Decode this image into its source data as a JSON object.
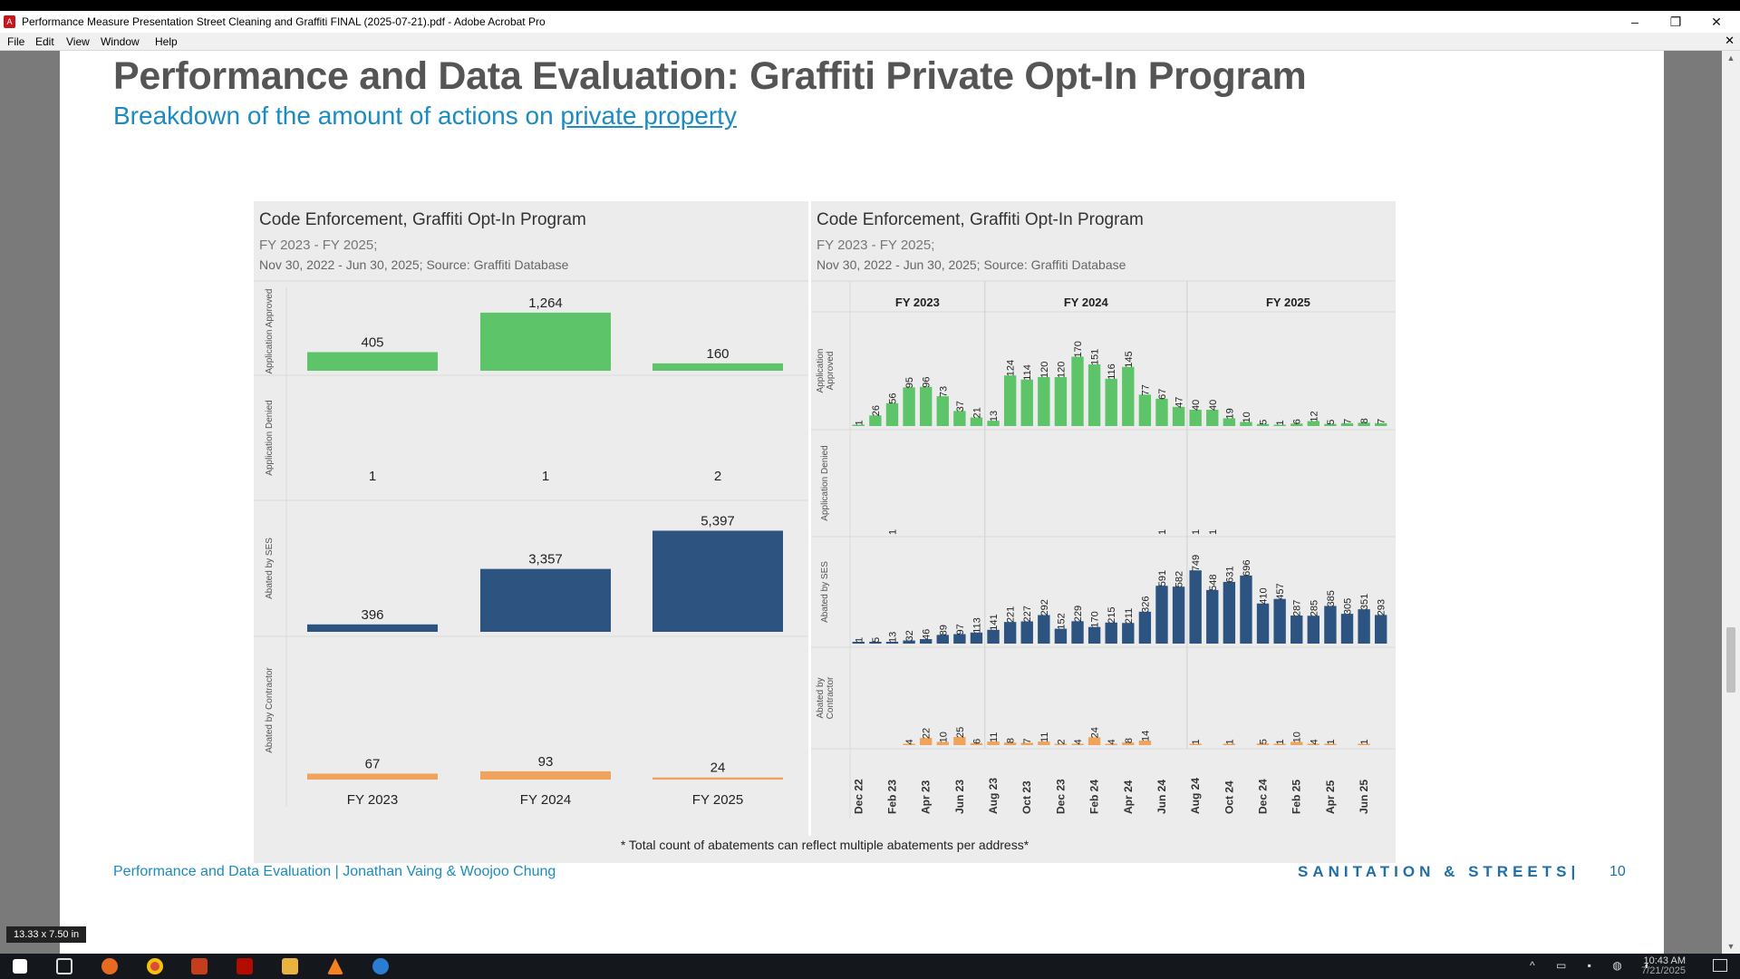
{
  "window": {
    "title": "Performance Measure Presentation Street Cleaning and Graffiti FINAL (2025-07-21).pdf - Adobe Acrobat Pro",
    "menu": [
      "File",
      "Edit",
      "View",
      "Window",
      "Help"
    ],
    "minimize": "–",
    "restore": "❐",
    "close": "✕"
  },
  "slide": {
    "title": "Performance and Data Evaluation: Graffiti Private Opt-In Program",
    "subtitle_prefix": "Breakdown of the amount of actions on ",
    "subtitle_link": "private property",
    "footnote": "* Total count of abatements can reflect multiple abatements per address*",
    "footer_left": "Performance and Data Evaluation | Jonathan Vaing & Woojoo Chung",
    "footer_right": "SANITATION & STREETS|",
    "page_number": "10"
  },
  "status": {
    "page_size": "13.33 x 7.50 in",
    "clock_time": "10:43 AM",
    "clock_date": "7/21/2025"
  },
  "colors": {
    "green": "#5ec46a",
    "navy": "#2d5480",
    "orange": "#f0a35a",
    "accent": "#1c8bbf"
  },
  "chart_data": [
    {
      "type": "bar",
      "title": "Code Enforcement, Graffiti Opt-In Program",
      "subtitle": "FY 2023 - FY 2025;",
      "source": "Nov 30, 2022 - Jun 30, 2025; Source: Graffiti Database",
      "categories": [
        "FY 2023",
        "FY 2024",
        "FY 2025"
      ],
      "series": [
        {
          "name": "Application Approved",
          "values": [
            405,
            1264,
            160
          ],
          "labels": [
            "405",
            "1,264",
            "160"
          ],
          "color": "#5ec46a"
        },
        {
          "name": "Application Denied",
          "values": [
            1,
            1,
            2
          ],
          "labels": [
            "1",
            "1",
            "2"
          ],
          "color": "#5ec46a"
        },
        {
          "name": "Abated by SES",
          "values": [
            396,
            3357,
            5397
          ],
          "labels": [
            "396",
            "3,357",
            "5,397"
          ],
          "color": "#2d5480"
        },
        {
          "name": "Abated by Contractor",
          "values": [
            67,
            93,
            24
          ],
          "labels": [
            "67",
            "93",
            "24"
          ],
          "color": "#f0a35a"
        }
      ]
    },
    {
      "type": "bar",
      "title": "Code Enforcement, Graffiti Opt-In Program",
      "subtitle": "FY 2023 - FY 2025;",
      "source": "Nov 30, 2022 - Jun 30, 2025; Source: Graffiti Database",
      "groups": [
        {
          "name": "FY 2023",
          "count": 8
        },
        {
          "name": "FY 2024",
          "count": 12
        },
        {
          "name": "FY 2025",
          "count": 12
        }
      ],
      "tick_labels": [
        "Dec 22",
        "Feb 23",
        "Apr 23",
        "Jun 23",
        "Aug 23",
        "Oct 23",
        "Dec 23",
        "Feb 24",
        "Apr 24",
        "Jun 24",
        "Aug 24",
        "Oct 24",
        "Dec 24",
        "Feb 25",
        "Apr 25",
        "Jun 25"
      ],
      "series": [
        {
          "name": "Application Approved",
          "color": "#5ec46a",
          "max": 200,
          "values": [
            1,
            26,
            56,
            95,
            96,
            73,
            37,
            21,
            13,
            124,
            114,
            120,
            120,
            170,
            151,
            116,
            145,
            77,
            67,
            47,
            40,
            40,
            19,
            10,
            5,
            1,
            6,
            12,
            5,
            7,
            8,
            7
          ]
        },
        {
          "name": "Application Denied",
          "color": "#5ec46a",
          "max": 200,
          "values": [
            null,
            null,
            1,
            null,
            null,
            null,
            null,
            null,
            null,
            null,
            null,
            null,
            null,
            null,
            null,
            null,
            null,
            null,
            1,
            null,
            1,
            1,
            null,
            null,
            null,
            null,
            null,
            null,
            null,
            null,
            null,
            null
          ]
        },
        {
          "name": "Abated by SES",
          "color": "#2d5480",
          "max": 760,
          "values": [
            1,
            5,
            13,
            32,
            46,
            89,
            97,
            113,
            141,
            221,
            227,
            292,
            152,
            229,
            170,
            215,
            211,
            326,
            591,
            582,
            749,
            548,
            631,
            696,
            410,
            457,
            287,
            285,
            385,
            305,
            351,
            293
          ]
        },
        {
          "name": "Abated by Contractor",
          "color": "#f0a35a",
          "max": 200,
          "values": [
            null,
            null,
            null,
            4,
            22,
            10,
            25,
            6,
            11,
            8,
            7,
            11,
            2,
            4,
            24,
            4,
            8,
            14,
            null,
            null,
            1,
            null,
            1,
            null,
            5,
            1,
            10,
            4,
            1,
            null,
            1,
            null
          ]
        }
      ]
    }
  ]
}
